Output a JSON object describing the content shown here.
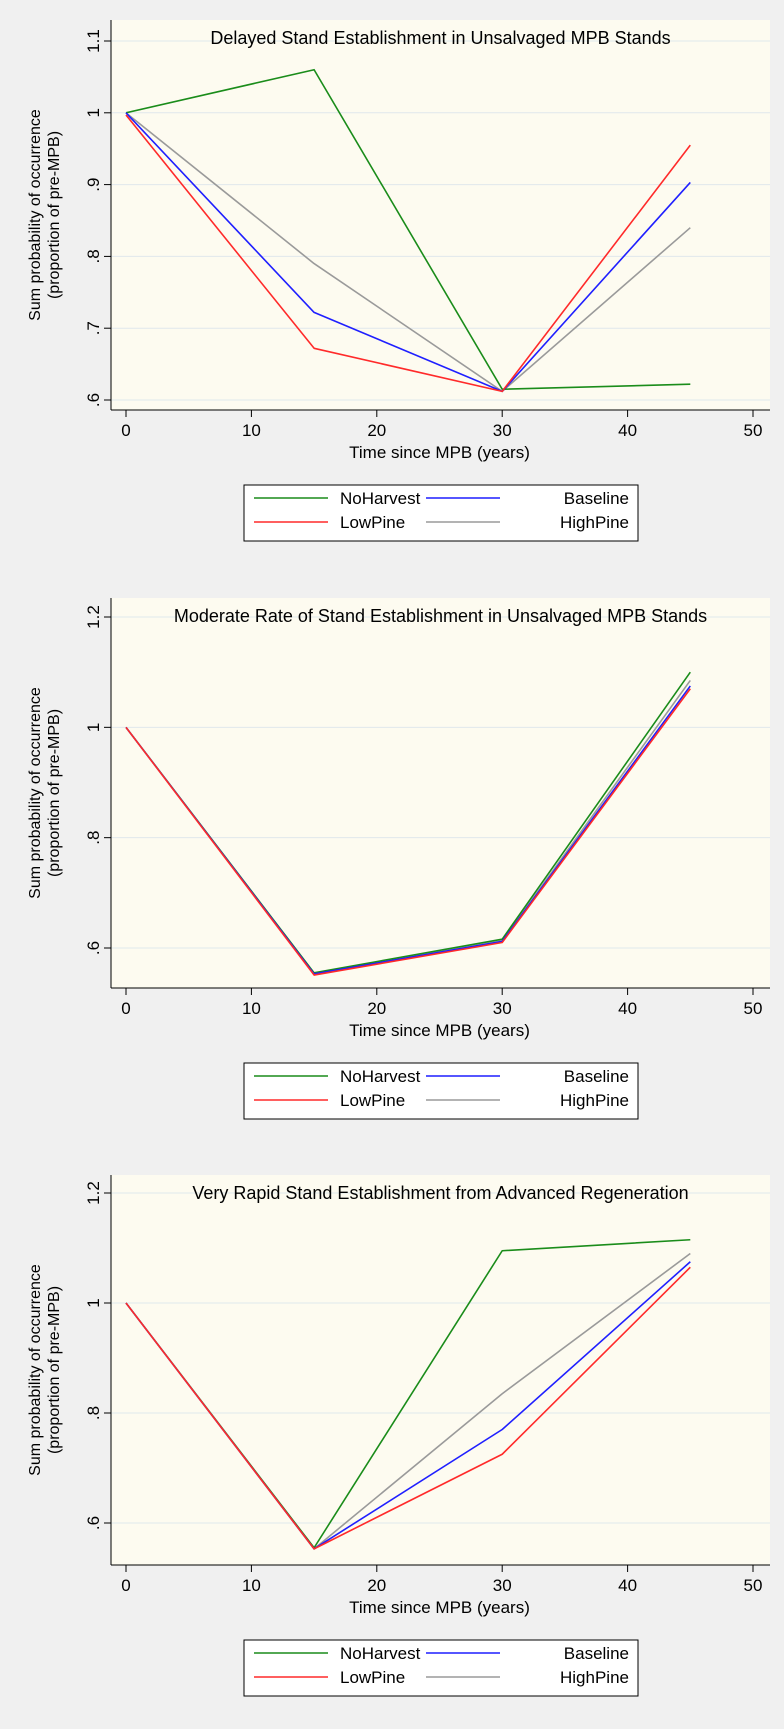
{
  "colors": {
    "background": "#f0f0f0",
    "plot_area": "#fdfbf0",
    "gridline": "#e0e8ec",
    "NoHarvest": "#1a8c1a",
    "Baseline": "#1f1fff",
    "LowPine": "#ff2a2a",
    "HighPine": "#9a9a9a"
  },
  "legend_labels": [
    "NoHarvest",
    "Baseline",
    "LowPine",
    "HighPine"
  ],
  "chart_data": [
    {
      "type": "line",
      "title": "Delayed Stand Establishment in Unsalvaged MPB Stands",
      "xlabel": "Time since MPB (years)",
      "ylabel": [
        "Sum probability of occurrence",
        "(proportion of pre-MPB)"
      ],
      "xlim": [
        0,
        50
      ],
      "ylim": [
        0.6,
        1.1
      ],
      "x_ticks": [
        "0",
        "10",
        "20",
        "30",
        "40",
        "50"
      ],
      "y_ticks": [
        ".6",
        ".7",
        ".8",
        ".9",
        "1",
        "1.1"
      ],
      "grid": true,
      "legend_placement": "bottom",
      "x": [
        0,
        15,
        30,
        45
      ],
      "series": [
        {
          "name": "NoHarvest",
          "values": [
            1.0,
            1.06,
            0.615,
            0.622
          ]
        },
        {
          "name": "Baseline",
          "values": [
            1.0,
            0.722,
            0.612,
            0.903
          ]
        },
        {
          "name": "LowPine",
          "values": [
            0.997,
            0.672,
            0.612,
            0.955
          ]
        },
        {
          "name": "HighPine",
          "values": [
            1.0,
            0.79,
            0.612,
            0.84
          ]
        }
      ]
    },
    {
      "type": "line",
      "title": "Moderate Rate of Stand Establishment in Unsalvaged MPB Stands",
      "xlabel": "Time since MPB (years)",
      "ylabel": [
        "Sum probability of occurrence",
        "(proportion of pre-MPB)"
      ],
      "xlim": [
        0,
        50
      ],
      "ylim": [
        0.6,
        1.2
      ],
      "x_ticks": [
        "0",
        "10",
        "20",
        "30",
        "40",
        "50"
      ],
      "y_ticks": [
        ".6",
        ".8",
        "1",
        "1.2"
      ],
      "grid": true,
      "legend_placement": "bottom",
      "x": [
        0,
        15,
        30,
        45
      ],
      "series": [
        {
          "name": "NoHarvest",
          "values": [
            1.0,
            0.555,
            0.616,
            1.1
          ]
        },
        {
          "name": "Baseline",
          "values": [
            1.0,
            0.553,
            0.612,
            1.075
          ]
        },
        {
          "name": "LowPine",
          "values": [
            1.0,
            0.551,
            0.61,
            1.07
          ]
        },
        {
          "name": "HighPine",
          "values": [
            1.0,
            0.553,
            0.613,
            1.085
          ]
        }
      ]
    },
    {
      "type": "line",
      "title": "Very Rapid Stand Establishment from Advanced Regeneration",
      "xlabel": "Time since MPB (years)",
      "ylabel": [
        "Sum probability of occurrence",
        "(proportion of pre-MPB)"
      ],
      "xlim": [
        0,
        50
      ],
      "ylim": [
        0.6,
        1.2
      ],
      "x_ticks": [
        "0",
        "10",
        "20",
        "30",
        "40",
        "50"
      ],
      "y_ticks": [
        ".6",
        ".8",
        "1",
        "1.2"
      ],
      "grid": true,
      "legend_placement": "bottom",
      "x": [
        0,
        15,
        30,
        45
      ],
      "series": [
        {
          "name": "NoHarvest",
          "values": [
            1.0,
            0.555,
            1.095,
            1.115
          ]
        },
        {
          "name": "Baseline",
          "values": [
            1.0,
            0.553,
            0.77,
            1.075
          ]
        },
        {
          "name": "LowPine",
          "values": [
            1.0,
            0.553,
            0.725,
            1.065
          ]
        },
        {
          "name": "HighPine",
          "values": [
            1.0,
            0.553,
            0.835,
            1.09
          ]
        }
      ]
    }
  ]
}
